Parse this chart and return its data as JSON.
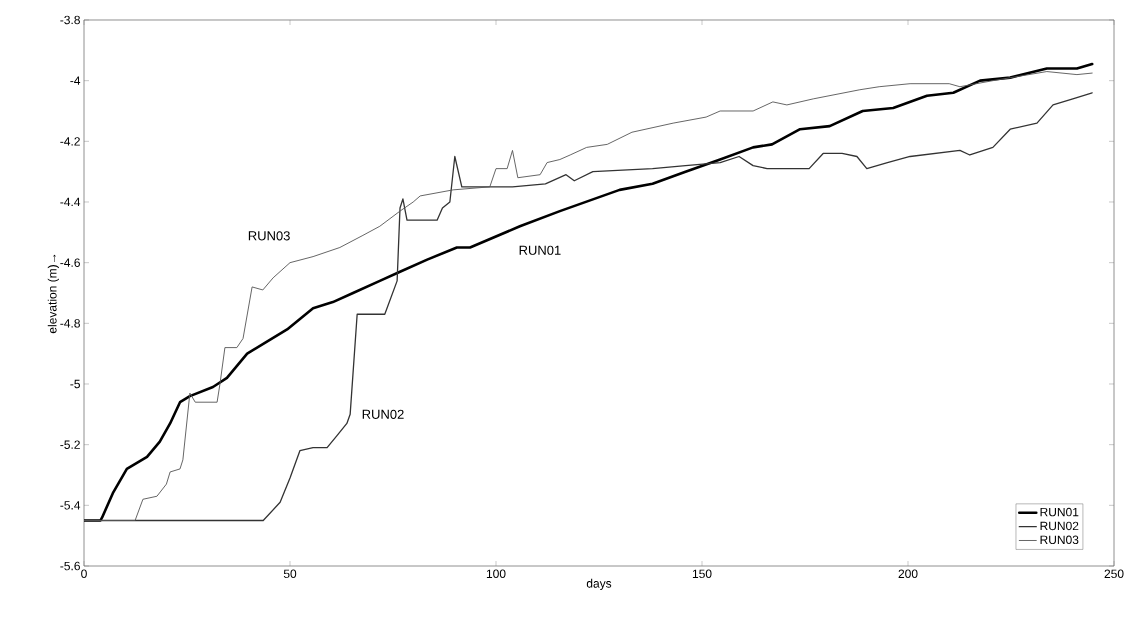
{
  "chart_data": {
    "type": "line",
    "xlabel": "days",
    "ylabel": "elevation (m)→",
    "xlim": [
      0,
      250
    ],
    "xticks": [
      0,
      50,
      100,
      150,
      200,
      250
    ],
    "ylim": [
      -5.6,
      -3.8
    ],
    "yticks": [
      -5.6,
      -5.4,
      -5.2,
      -5,
      -4.8,
      -4.6,
      -4.4,
      -4.2,
      -4,
      -3.8
    ],
    "grid": false,
    "legend": "bottom right",
    "marker": "none",
    "line_style": "solid",
    "series": [
      {
        "name": "RUN01",
        "color": "#000000",
        "x": [
          0,
          4,
          4.4,
          7,
          10.4,
          15.3,
          18.4,
          20.9,
          23.3,
          25.7,
          31.3,
          34.7,
          39.6,
          44.4,
          49.3,
          55.6,
          60.4,
          65.3,
          71.8,
          76.7,
          83.3,
          90.5,
          93.7,
          105.8,
          115.5,
          130,
          138,
          146,
          154.4,
          162.4,
          167,
          173.8,
          181,
          189,
          196.4,
          204.6,
          211,
          217.5,
          224.8,
          233.7,
          241,
          244.7
        ],
        "values": [
          -5.45,
          -5.45,
          -5.44,
          -5.36,
          -5.28,
          -5.24,
          -5.19,
          -5.13,
          -5.06,
          -5.04,
          -5.01,
          -4.98,
          -4.9,
          -4.86,
          -4.82,
          -4.75,
          -4.73,
          -4.7,
          -4.66,
          -4.63,
          -4.59,
          -4.55,
          -4.55,
          -4.48,
          -4.43,
          -4.36,
          -4.34,
          -4.3,
          -4.26,
          -4.22,
          -4.21,
          -4.16,
          -4.15,
          -4.1,
          -4.09,
          -4.05,
          -4.04,
          -4,
          -3.99,
          -3.96,
          -3.96,
          -3.945
        ]
      },
      {
        "name": "RUN02",
        "color": "#333333",
        "x": [
          0,
          43.5,
          47.6,
          50,
          52.4,
          55.6,
          59,
          61.4,
          63.8,
          64.6,
          66.3,
          73,
          76,
          76.7,
          77.4,
          78.4,
          85.7,
          87,
          88.8,
          90,
          91.7,
          97.8,
          104,
          112,
          117,
          119,
          123.5,
          138,
          146,
          154.4,
          159,
          162.4,
          165.8,
          176,
          179.4,
          184,
          187.6,
          190,
          195,
          200.5,
          212.6,
          215,
          220.6,
          224.8,
          231.3,
          235.2,
          240,
          244.7
        ],
        "values": [
          -5.45,
          -5.45,
          -5.39,
          -5.31,
          -5.22,
          -5.21,
          -5.21,
          -5.17,
          -5.13,
          -5.1,
          -4.77,
          -4.77,
          -4.66,
          -4.42,
          -4.39,
          -4.46,
          -4.46,
          -4.42,
          -4.4,
          -4.25,
          -4.35,
          -4.35,
          -4.35,
          -4.34,
          -4.31,
          -4.33,
          -4.3,
          -4.29,
          -4.28,
          -4.27,
          -4.25,
          -4.28,
          -4.29,
          -4.29,
          -4.24,
          -4.24,
          -4.25,
          -4.29,
          -4.27,
          -4.25,
          -4.23,
          -4.245,
          -4.22,
          -4.16,
          -4.14,
          -4.08,
          -4.06,
          -4.04
        ]
      },
      {
        "name": "RUN03",
        "color": "#555555",
        "x": [
          0,
          12.4,
          14.3,
          17.7,
          20,
          20.9,
          23.3,
          24,
          25.7,
          27,
          32.3,
          33,
          34.2,
          37.1,
          38.6,
          40.8,
          43.4,
          45.9,
          50,
          55.6,
          62.1,
          67.7,
          71.8,
          76.7,
          79.9,
          81.6,
          89.6,
          98.5,
          100,
          102.7,
          104,
          105.3,
          110.7,
          112.4,
          115.5,
          118,
          122,
          127,
          133,
          143,
          151,
          154.4,
          162.4,
          167.2,
          170.6,
          177,
          188.3,
          193,
          200.5,
          210,
          212.6,
          220.6,
          233.7,
          241,
          244.7
        ],
        "values": [
          -5.45,
          -5.45,
          -5.38,
          -5.37,
          -5.33,
          -5.29,
          -5.28,
          -5.25,
          -5.03,
          -5.06,
          -5.06,
          -5,
          -4.88,
          -4.88,
          -4.85,
          -4.68,
          -4.69,
          -4.65,
          -4.6,
          -4.58,
          -4.55,
          -4.51,
          -4.48,
          -4.43,
          -4.4,
          -4.38,
          -4.36,
          -4.35,
          -4.29,
          -4.29,
          -4.23,
          -4.32,
          -4.31,
          -4.27,
          -4.26,
          -4.245,
          -4.22,
          -4.21,
          -4.17,
          -4.14,
          -4.12,
          -4.1,
          -4.1,
          -4.07,
          -4.08,
          -4.06,
          -4.03,
          -4.02,
          -4.01,
          -4.01,
          -4.02,
          -4,
          -3.97,
          -3.98,
          -3.975
        ]
      }
    ]
  }
}
